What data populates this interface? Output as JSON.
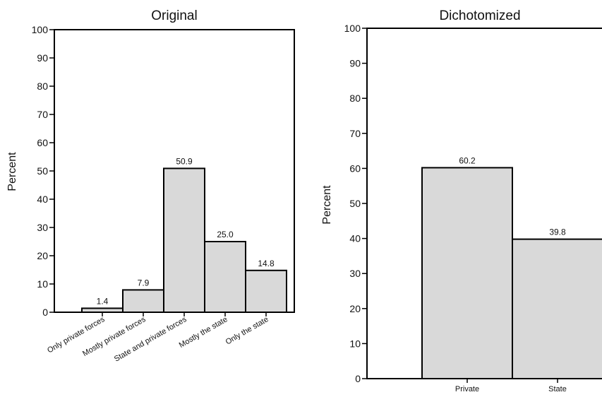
{
  "colors": {
    "bar_fill": "#d9d9d9",
    "stroke": "#000000",
    "background": "#ffffff"
  },
  "chart_data": [
    {
      "type": "bar",
      "title": "Original",
      "xlabel": "",
      "ylabel": "Percent",
      "categories": [
        "Only private forces",
        "Mostly private forces",
        "State and private forces",
        "Mostly the state",
        "Only the state"
      ],
      "values": [
        1.4,
        7.9,
        50.9,
        25.0,
        14.8
      ],
      "value_labels": [
        "1.4",
        "7.9",
        "50.9",
        "25.0",
        "14.8"
      ],
      "ylim": [
        0,
        100
      ],
      "yticks": [
        "0",
        "10",
        "20",
        "30",
        "40",
        "50",
        "60",
        "70",
        "80",
        "90",
        "100"
      ],
      "grid": false,
      "legend": "none"
    },
    {
      "type": "bar",
      "title": "Dichotomized",
      "xlabel": "",
      "ylabel": "Percent",
      "categories": [
        "Private",
        "State"
      ],
      "values": [
        60.2,
        39.8
      ],
      "value_labels": [
        "60.2",
        "39.8"
      ],
      "ylim": [
        0,
        100
      ],
      "yticks": [
        "0",
        "10",
        "20",
        "30",
        "40",
        "50",
        "60",
        "70",
        "80",
        "90",
        "100"
      ],
      "grid": false,
      "legend": "none"
    }
  ]
}
